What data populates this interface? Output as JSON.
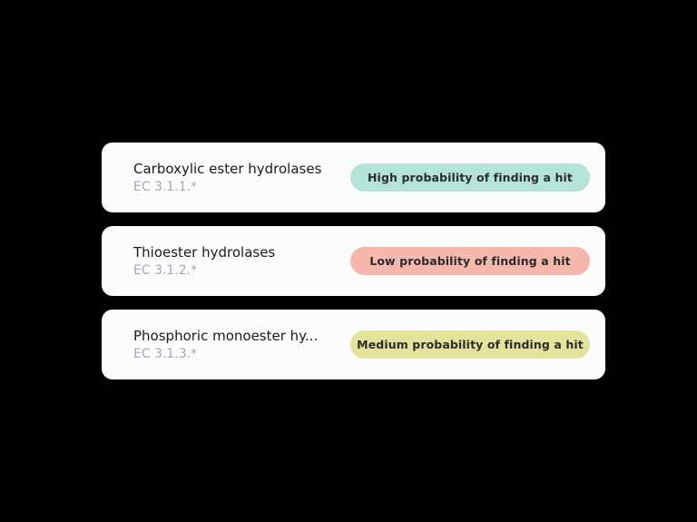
{
  "enzyme_classes": [
    {
      "name": "Carboxylic ester hydrolases",
      "code": "EC 3.1.1.*",
      "probability_label": "High probability of finding a hit",
      "probability_level": "high",
      "badge_color": "#b3e4d7"
    },
    {
      "name": "Thioester hydrolases",
      "code": "EC 3.1.2.*",
      "probability_label": "Low probability of finding a hit",
      "probability_level": "low",
      "badge_color": "#f6b8ad"
    },
    {
      "name": "Phosphoric monoester hy...",
      "code": "EC 3.1.3.*",
      "probability_label": "Medium probability of finding a hit",
      "probability_level": "medium",
      "badge_color": "#e3e39a"
    }
  ],
  "colors": {
    "background": "#000000",
    "card": "#fbfcfb",
    "title_text": "#1b1b1f",
    "code_text": "#a3a7b8"
  }
}
